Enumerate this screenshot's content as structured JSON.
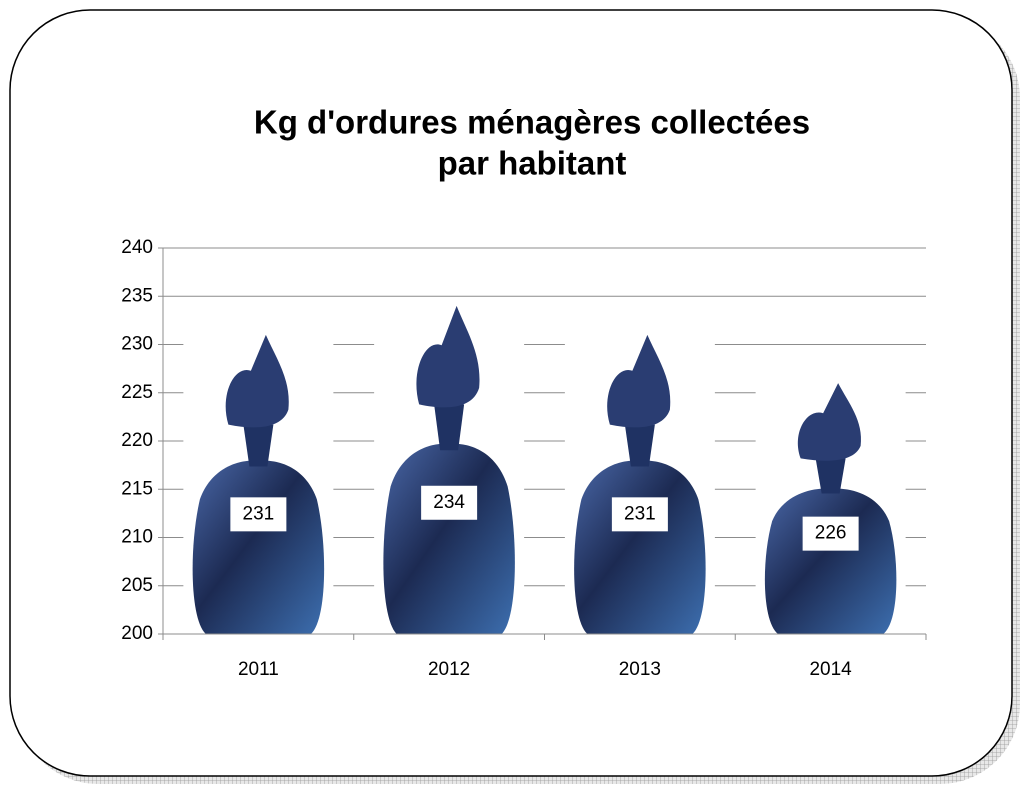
{
  "chart_data": {
    "type": "bar",
    "title": [
      "Kg d'ordures ménagères collectées",
      "par habitant"
    ],
    "categories": [
      "2011",
      "2012",
      "2013",
      "2014"
    ],
    "values": [
      231,
      234,
      231,
      226
    ],
    "color": "#1f3263",
    "ylim": [
      200,
      240
    ],
    "yticks": [
      200,
      205,
      210,
      215,
      220,
      225,
      230,
      235,
      240
    ],
    "grid": true
  }
}
